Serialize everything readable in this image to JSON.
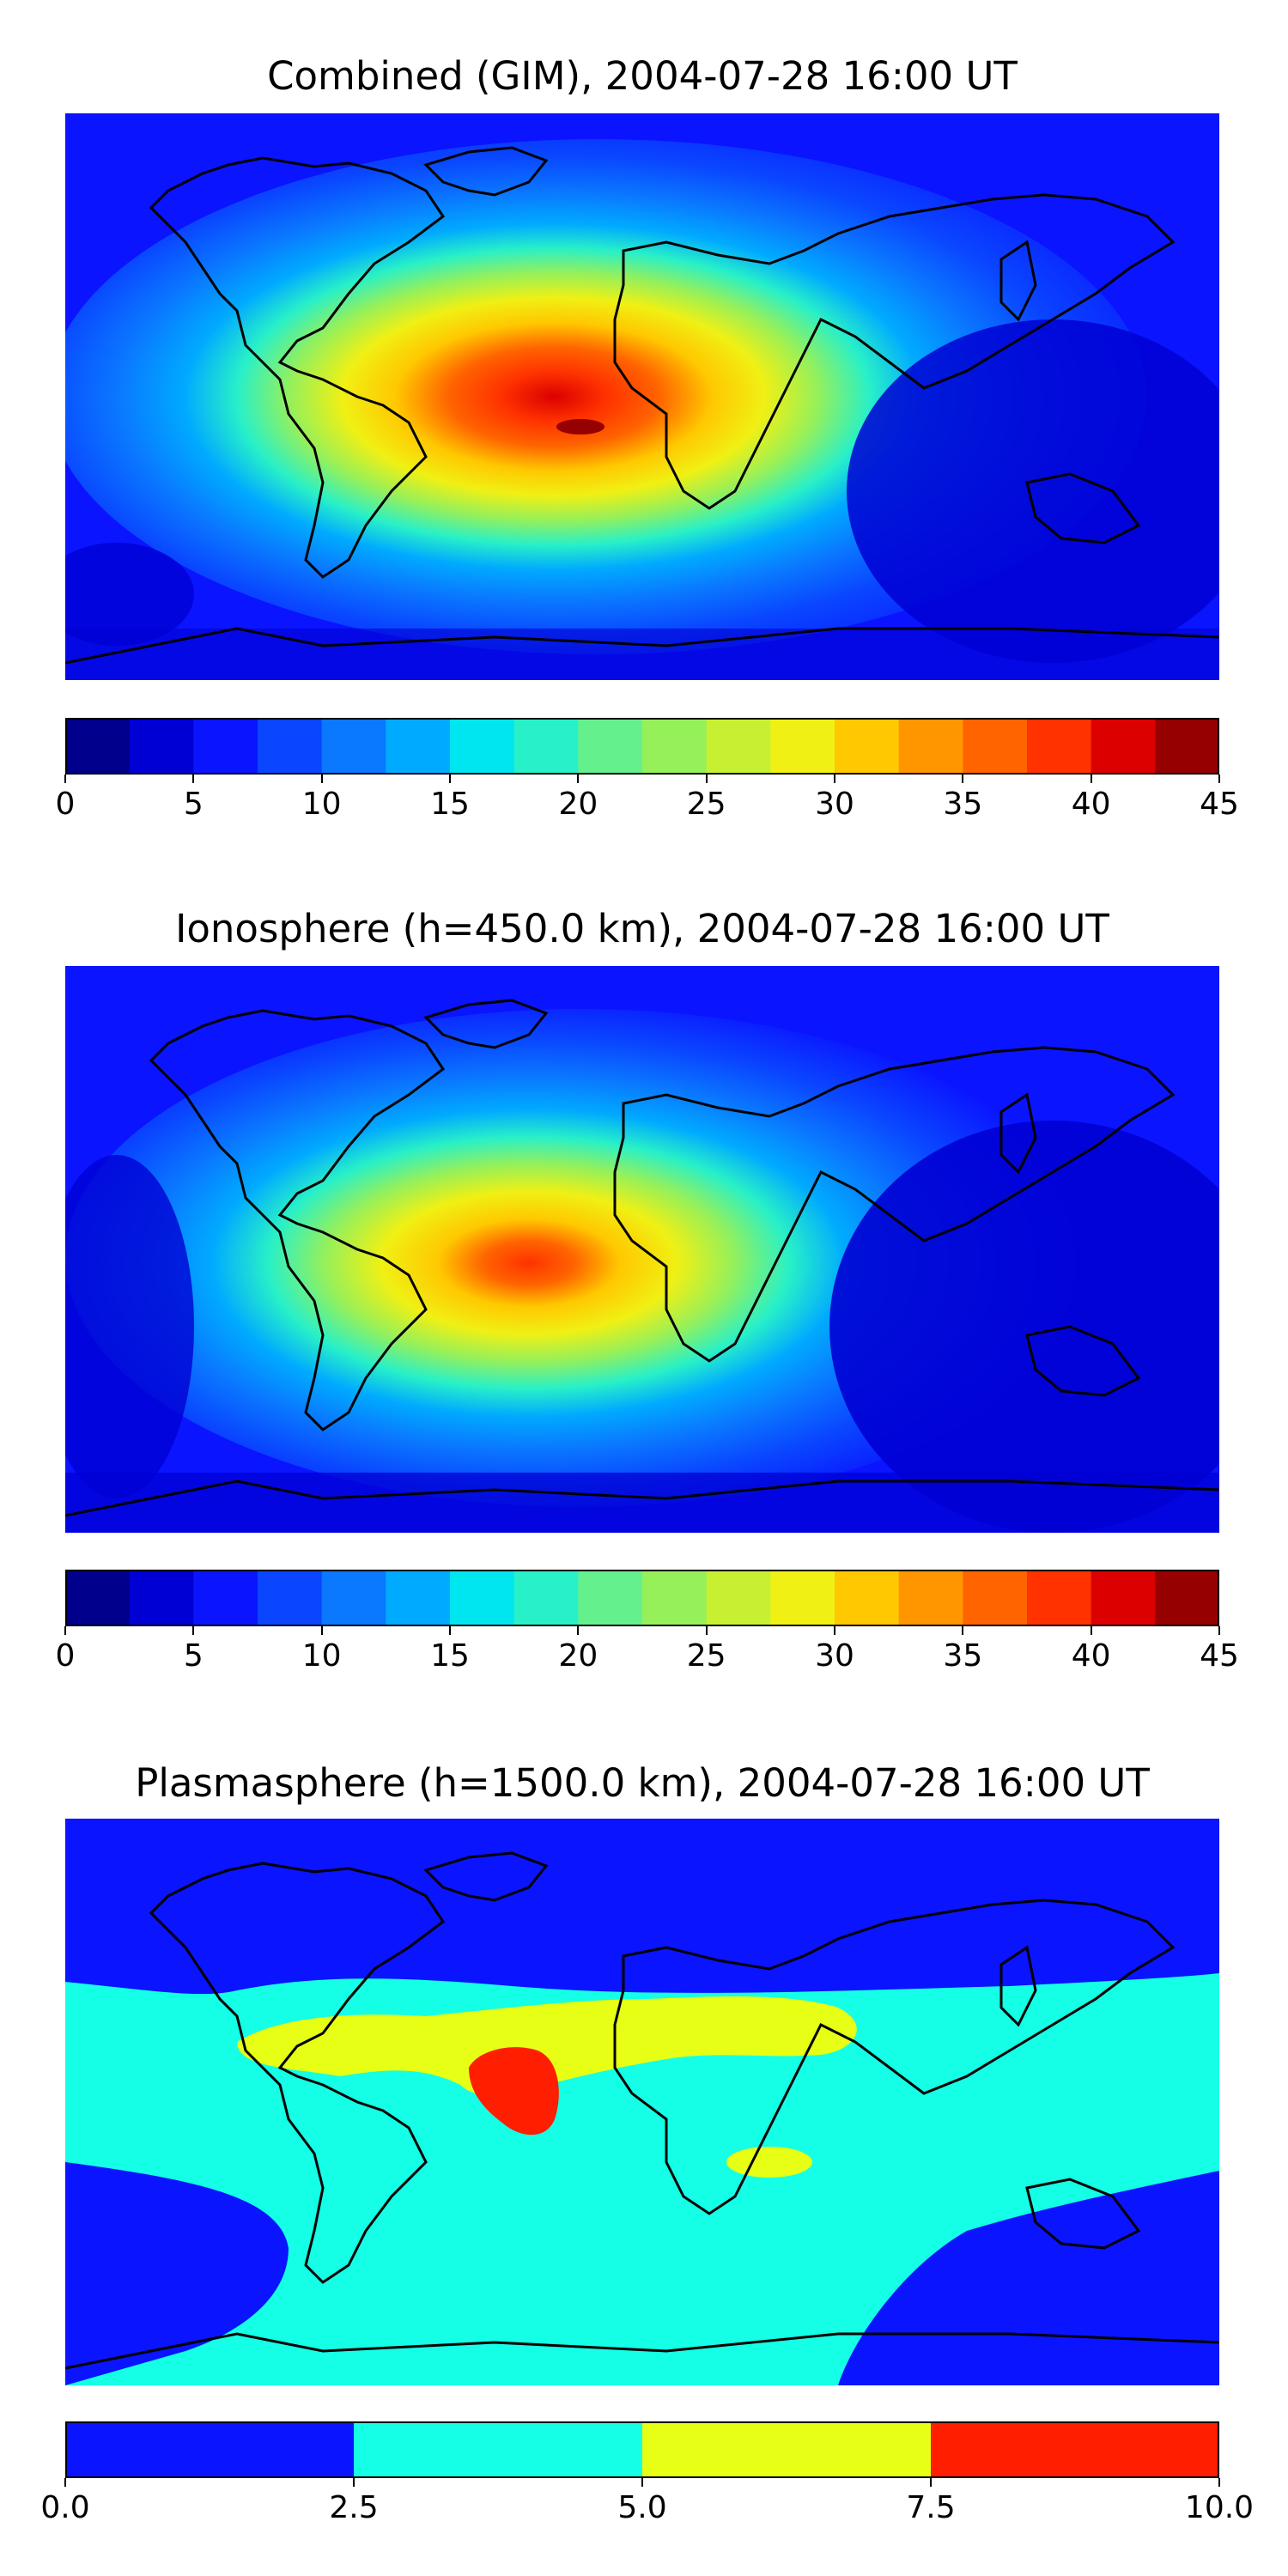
{
  "panels": [
    {
      "title": "Combined (GIM), 2004-07-28 16:00 UT",
      "colorbar": {
        "min": 0,
        "max": 45,
        "ticks": [
          "0",
          "5",
          "10",
          "15",
          "20",
          "25",
          "30",
          "35",
          "40",
          "45"
        ],
        "colors": [
          "#00008c",
          "#0000d4",
          "#0a14ff",
          "#0a46ff",
          "#0a78ff",
          "#00aaff",
          "#00e6f0",
          "#28f0c8",
          "#64f08c",
          "#96f05a",
          "#c8f032",
          "#f0f014",
          "#ffc800",
          "#ff9600",
          "#ff6400",
          "#ff3200",
          "#dc0000",
          "#960000"
        ]
      },
      "max_value_shown": 42
    },
    {
      "title": "Ionosphere  (h=450.0 km), 2004-07-28 16:00 UT",
      "colorbar": {
        "min": 0,
        "max": 45,
        "ticks": [
          "0",
          "5",
          "10",
          "15",
          "20",
          "25",
          "30",
          "35",
          "40",
          "45"
        ],
        "colors": [
          "#00008c",
          "#0000d4",
          "#0a14ff",
          "#0a46ff",
          "#0a78ff",
          "#00aaff",
          "#00e6f0",
          "#28f0c8",
          "#64f08c",
          "#96f05a",
          "#c8f032",
          "#f0f014",
          "#ffc800",
          "#ff9600",
          "#ff6400",
          "#ff3200",
          "#dc0000",
          "#960000"
        ]
      },
      "max_value_shown": 37
    },
    {
      "title": "Plasmasphere (h=1500.0 km), 2004-07-28 16:00 UT",
      "colorbar": {
        "min": 0,
        "max": 10,
        "ticks": [
          "0.0",
          "2.5",
          "5.0",
          "7.5",
          "10.0"
        ],
        "colors": [
          "#0a14ff",
          "#14ffe6",
          "#e6ff14",
          "#ff1e00"
        ]
      },
      "max_value_shown": 9
    }
  ]
}
